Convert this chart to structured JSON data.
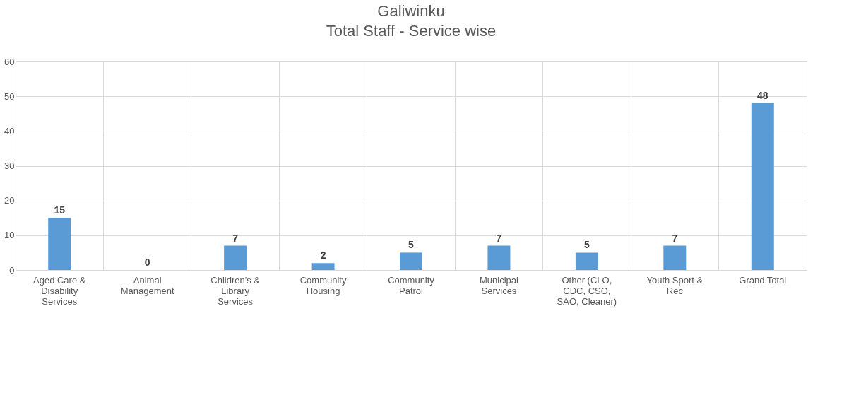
{
  "chart_data": {
    "type": "bar",
    "title": "Galiwinku",
    "subtitle": "Total Staff - Service wise",
    "categories": [
      "Aged Care & Disability Services",
      "Animal Management",
      "Children's & Library Services",
      "Community Housing",
      "Community Patrol",
      "Municipal Services",
      "Other (CLO, CDC, CSO, SAO, Cleaner)",
      "Youth Sport & Rec",
      "Grand Total"
    ],
    "values": [
      15,
      0,
      7,
      2,
      5,
      7,
      5,
      7,
      48
    ],
    "color": "#5b9bd5",
    "ylim": [
      0,
      60
    ],
    "yticks": [
      0,
      10,
      20,
      30,
      40,
      50,
      60
    ],
    "grid": true,
    "data_labels": true
  }
}
